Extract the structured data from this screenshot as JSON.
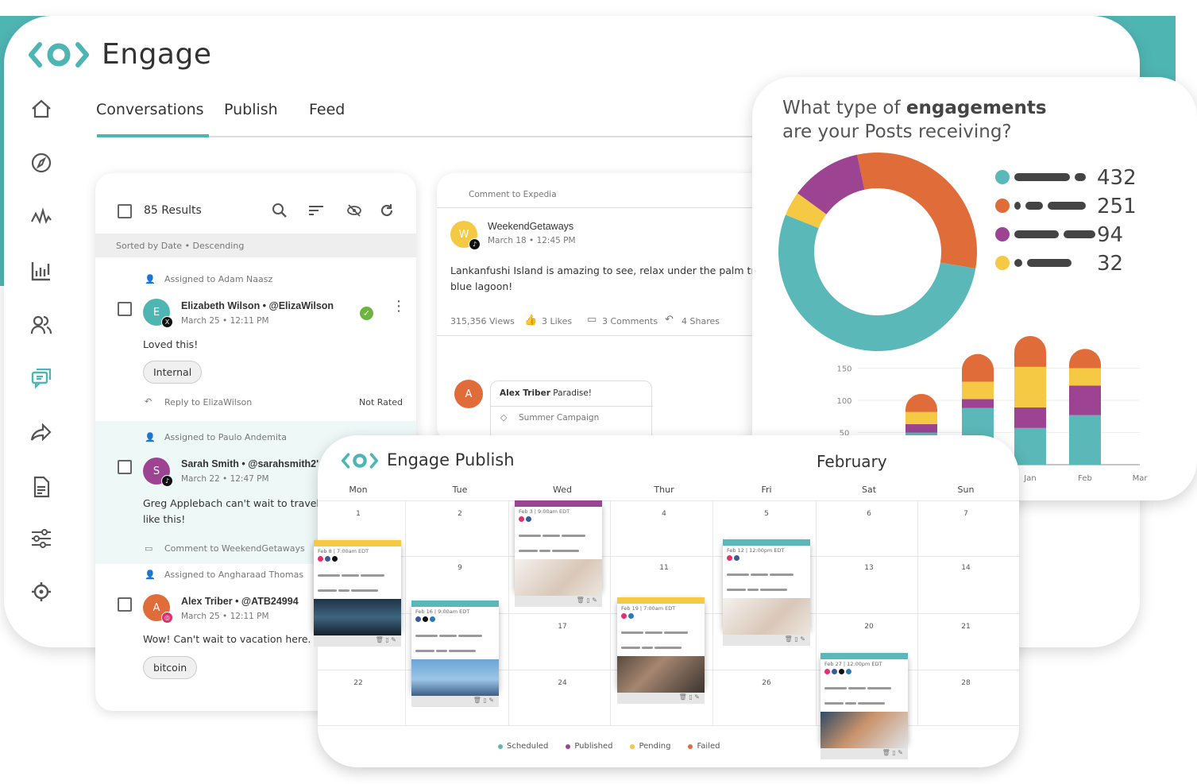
{
  "app": {
    "name": "Engage",
    "brand_color": "#4fb5b3"
  },
  "sidebar": {
    "items": [
      {
        "icon": "home-icon"
      },
      {
        "icon": "compass-icon"
      },
      {
        "icon": "activity-icon"
      },
      {
        "icon": "bar-chart-icon"
      },
      {
        "icon": "users-icon"
      },
      {
        "icon": "chat-icon",
        "active": true
      },
      {
        "icon": "share-icon"
      },
      {
        "icon": "document-icon"
      },
      {
        "icon": "sliders-icon"
      },
      {
        "icon": "gear-icon"
      }
    ]
  },
  "tabs": [
    {
      "label": "Conversations",
      "active": true
    },
    {
      "label": "Publish"
    },
    {
      "label": "Feed"
    }
  ],
  "conversations": {
    "results": "85 Results",
    "sort": "Sorted by Date • Descending",
    "items": [
      {
        "assigned": "Assigned to Adam Naasz",
        "initial": "E",
        "name": "Elizabeth Wilson • @ElizaWilson",
        "date": "March 25 • 12:11 PM",
        "text": "Loved this!",
        "tag": "Internal",
        "reply": "Reply to ElizaWilson",
        "rating": "Not Rated",
        "network": "x",
        "avatar_color": "#4fb5b3"
      },
      {
        "assigned": "Assigned to Paulo Andemita",
        "initial": "S",
        "name": "Sarah Smith • @sarahsmith2'",
        "date": "March 22 • 12:47 PM",
        "text": "Greg Applebach can't wait to travel like this!",
        "comment": "Comment to WeekendGetaways",
        "network": "tiktok",
        "avatar_color": "#9c4491"
      },
      {
        "assigned": "Assigned to Angharaad Thomas",
        "initial": "A",
        "name": "Alex Triber • @ATB24994",
        "date": "March 25 • 12:11 PM",
        "text": "Wow! Can't wait to vacation here.",
        "tag": "bitcoin",
        "network": "instagram",
        "avatar_color": "#e06c3a"
      }
    ]
  },
  "post": {
    "context": "Comment to Expedia",
    "initial": "W",
    "author": "WeekendGetaways",
    "date": "March 18 • 12:45 PM",
    "text": "Lankanfushi Island is amazing to see, relax under the palm tre in blue lagoon!",
    "views": "315,356 Views",
    "likes": "3 Likes",
    "comments": "3 Comments",
    "shares": "4 Shares",
    "reply": {
      "initial": "A",
      "author": "Alex Triber",
      "text": "Paradise!",
      "tag": "Summer Campaign"
    }
  },
  "analytics": {
    "title_pre": "What type of ",
    "title_bold": "engagements",
    "title_post": "are your Posts receiving?"
  },
  "chart_data": [
    {
      "type": "pie",
      "donut": true,
      "values": [
        432,
        251,
        94,
        32
      ],
      "colors": [
        "#5bb8b8",
        "#e06c3a",
        "#9c4491",
        "#f5c944"
      ],
      "labels": [
        "432",
        "251",
        "94",
        "32"
      ]
    },
    {
      "type": "bar",
      "stacked": true,
      "categories": [
        "",
        "",
        "Jan",
        "Feb",
        "Mar"
      ],
      "series": [
        {
          "color": "#5bb8b8",
          "values": [
            50,
            88,
            57,
            77,
            null
          ]
        },
        {
          "color": "#9c4491",
          "values": [
            13,
            14,
            32,
            46,
            null
          ]
        },
        {
          "color": "#f5c944",
          "values": [
            19,
            27,
            63,
            27,
            null
          ]
        },
        {
          "color": "#e06c3a",
          "values": [
            28,
            43,
            48,
            30,
            null
          ]
        }
      ],
      "yticks": [
        50,
        100,
        150
      ],
      "ylim": [
        0,
        200
      ],
      "grid": true
    }
  ],
  "calendar": {
    "title": "Engage Publish",
    "month": "February",
    "days": [
      "Mon",
      "Tue",
      "Wed",
      "Thur",
      "Fri",
      "Sat",
      "Sun"
    ],
    "visible_dates": [
      "1",
      "2",
      "4",
      "5",
      "6",
      "7",
      "9",
      "11",
      "13",
      "14",
      "17",
      "20",
      "21",
      "22",
      "24",
      "26",
      "28"
    ],
    "events": [
      {
        "time": "Feb 3 | 9:00am EDT",
        "status": "published",
        "color": "#9c4491",
        "networks": [
          "instagram",
          "facebook"
        ]
      },
      {
        "time": "Feb 8 | 7:00am EDT",
        "status": "pending",
        "color": "#f5c944",
        "networks": [
          "instagram",
          "facebook",
          "x"
        ]
      },
      {
        "time": "Feb 16 | 9:00am EDT",
        "status": "scheduled",
        "color": "#5bb8b8",
        "networks": [
          "facebook",
          "x",
          "linkedin"
        ]
      },
      {
        "time": "Feb 19 | 7:00am EDT",
        "status": "pending",
        "color": "#f5c944",
        "networks": [
          "instagram",
          "linkedin"
        ]
      },
      {
        "time": "Feb 12 | 12:00pm EDT",
        "status": "scheduled",
        "color": "#5bb8b8",
        "networks": [
          "instagram",
          "facebook"
        ]
      },
      {
        "time": "Feb 27 | 12:00pm EDT",
        "status": "scheduled",
        "color": "#5bb8b8",
        "networks": [
          "instagram",
          "facebook",
          "x",
          "linkedin"
        ]
      }
    ],
    "legend": [
      {
        "label": "Scheduled",
        "color": "#5bb8b8"
      },
      {
        "label": "Published",
        "color": "#9c4491"
      },
      {
        "label": "Pending",
        "color": "#f5c944"
      },
      {
        "label": "Failed",
        "color": "#e06c3a"
      }
    ]
  }
}
